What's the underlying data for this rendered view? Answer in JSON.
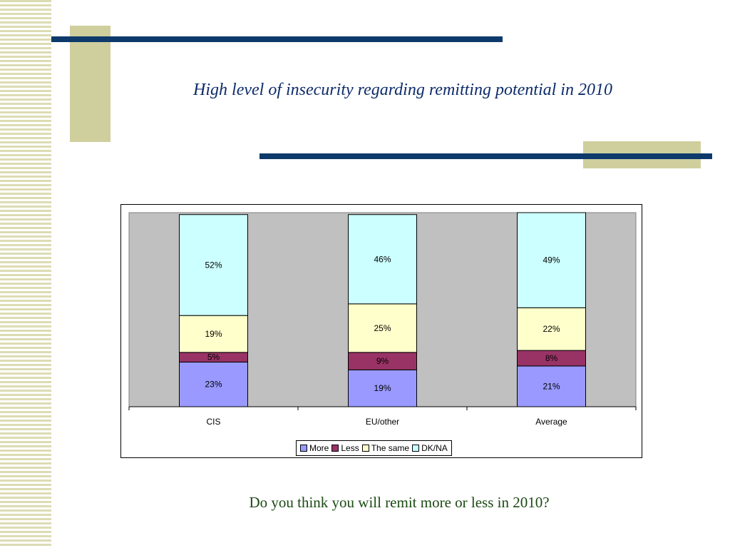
{
  "slide": {
    "title": "High level of insecurity regarding remitting potential in 2010",
    "question": "Do you think you will remit more or less in 2010?"
  },
  "colors": {
    "accent_navy": "#0d3a6b",
    "accent_khaki": "#cfcf9e",
    "plot_bg": "#c0c0c0"
  },
  "chart_data": {
    "type": "bar",
    "stacked": true,
    "categories": [
      "CIS",
      "EU/other",
      "Average"
    ],
    "series": [
      {
        "name": "More",
        "values": [
          23,
          19,
          21
        ],
        "labels": [
          "23%",
          "19%",
          "21%"
        ],
        "color": "#9999ff"
      },
      {
        "name": "Less",
        "values": [
          5,
          9,
          8
        ],
        "labels": [
          "5%",
          "9%",
          "8%"
        ],
        "color": "#993366"
      },
      {
        "name": "The same",
        "values": [
          19,
          25,
          22
        ],
        "labels": [
          "19%",
          "25%",
          "22%"
        ],
        "color": "#ffffcc"
      },
      {
        "name": "DK/NA",
        "values": [
          52,
          46,
          49
        ],
        "labels": [
          "52%",
          "46%",
          "49%"
        ],
        "color": "#ccffff"
      }
    ],
    "ylim": [
      0,
      100
    ],
    "grid": false,
    "legend": "bottom"
  }
}
